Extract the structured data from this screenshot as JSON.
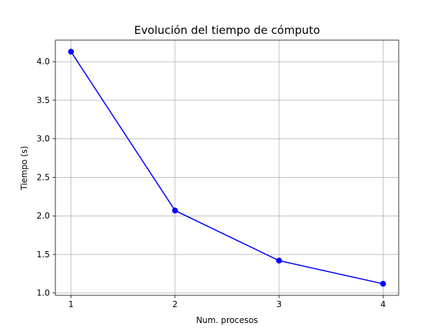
{
  "chart_data": {
    "type": "line",
    "title": "Evolución del tiempo de cómputo",
    "xlabel": "Num. procesos",
    "ylabel": "Tiempo (s)",
    "x": [
      1,
      2,
      3,
      4
    ],
    "series": [
      {
        "values": [
          4.13,
          2.07,
          1.42,
          1.12
        ],
        "color": "#0000ff",
        "marker": "circle"
      }
    ],
    "x_ticks": [
      "1",
      "2",
      "3",
      "4"
    ],
    "y_ticks": [
      "1.0",
      "1.5",
      "2.0",
      "2.5",
      "3.0",
      "3.5",
      "4.0"
    ],
    "xlim": [
      0.85,
      4.15
    ],
    "ylim": [
      0.97,
      4.28
    ],
    "grid": true
  }
}
